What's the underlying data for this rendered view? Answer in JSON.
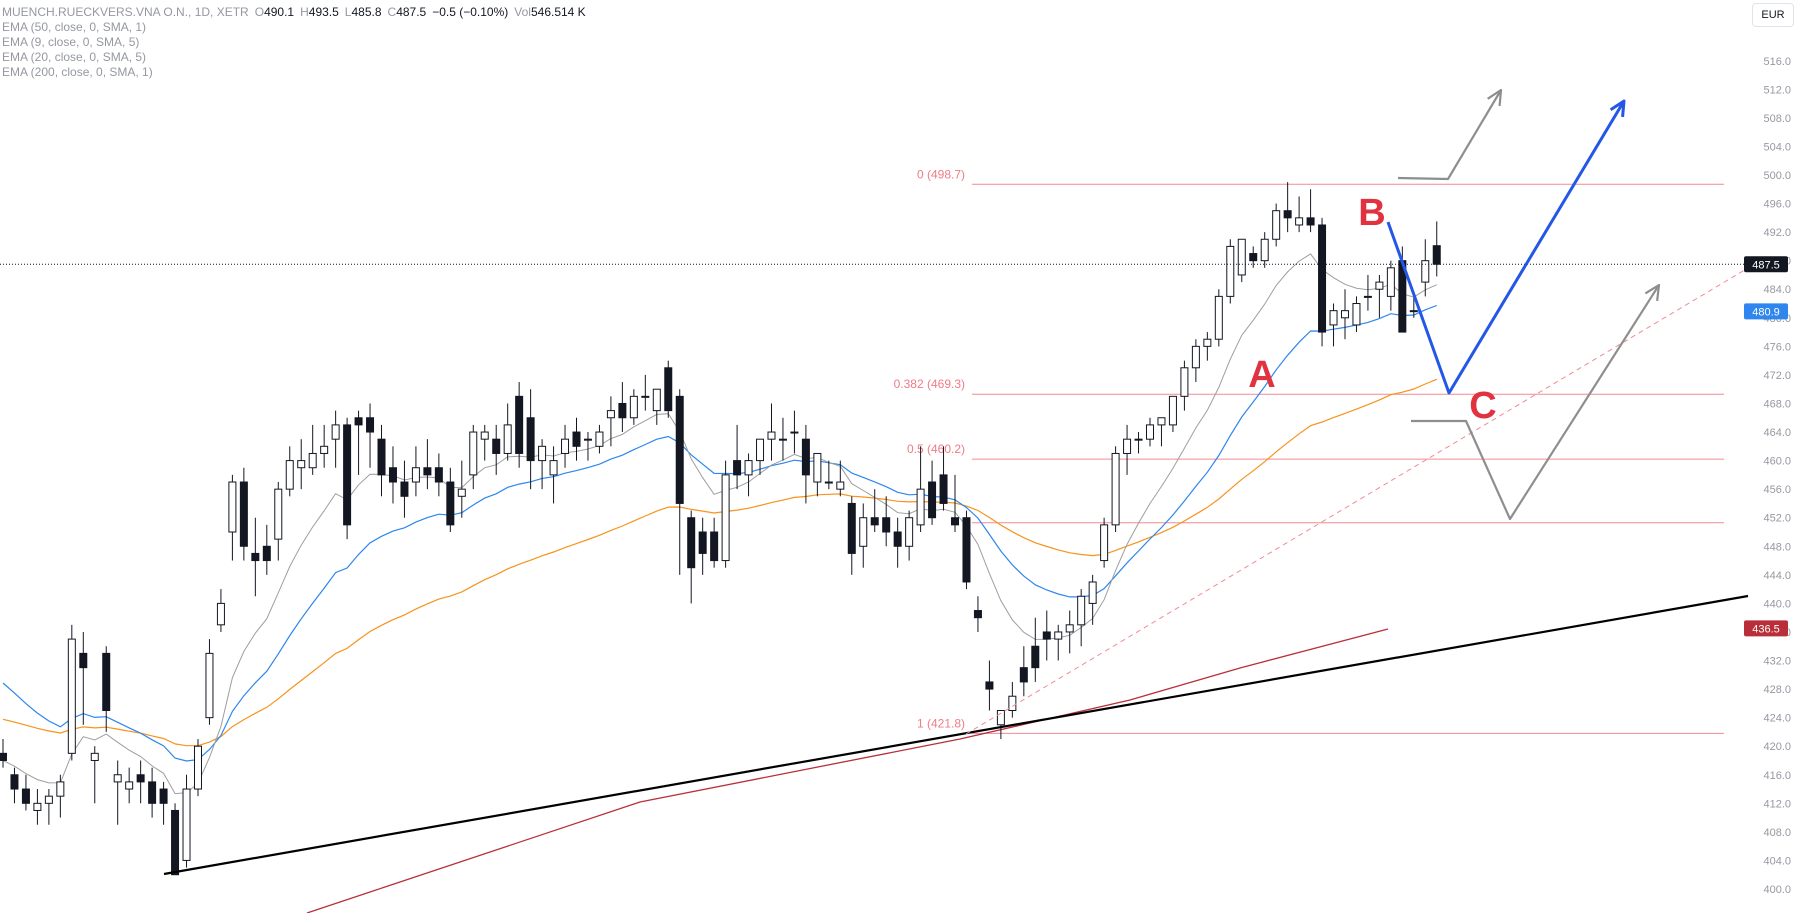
{
  "header": {
    "symbol": "MUENCH.RUECKVERS.VNA O.N., 1D, XETR",
    "open_label": "O",
    "open": "490.1",
    "high_label": "H",
    "high": "493.5",
    "low_label": "L",
    "low": "485.8",
    "close_label": "C",
    "close": "487.5",
    "change": "−0.5 (−0.10%)",
    "vol_label": "Vol",
    "volume": "546.514 K"
  },
  "indicators": [
    {
      "label": "EMA (50, close, 0, SMA, 1)",
      "color": "#f7931e"
    },
    {
      "label": "EMA (9, close, 0, SMA, 5)",
      "color": "#9e9e9e"
    },
    {
      "label": "EMA (20, close, 0, SMA, 5)",
      "color": "#2e86ee"
    },
    {
      "label": "EMA (200, close, 0, SMA, 1)",
      "color": "#b82f3a"
    }
  ],
  "currency": "EUR",
  "chart_data": {
    "type": "candlestick",
    "y_axis": {
      "min": 399,
      "max": 520,
      "tick_values": [
        400,
        404,
        408,
        412,
        416,
        420,
        424,
        428,
        432,
        436,
        440,
        444,
        448,
        452,
        456,
        460,
        464,
        468,
        472,
        476,
        480,
        484,
        488,
        492,
        496,
        500,
        504,
        508,
        512,
        516
      ],
      "tick_labels": [
        "400.0",
        "404.0",
        "408.0",
        "412.0",
        "416.0",
        "420.0",
        "424.0",
        "428.0",
        "432.0",
        "436.0",
        "440.0",
        "444.0",
        "448.0",
        "452.0",
        "456.0",
        "460.0",
        "464.0",
        "468.0",
        "472.0",
        "476.0",
        "480.0",
        "484.0",
        "488.0",
        "492.0",
        "496.0",
        "500.0",
        "504.0",
        "508.0",
        "512.0",
        "516.0"
      ]
    },
    "current_price": {
      "value": 487.5,
      "label": "487.5",
      "color": "#131722"
    },
    "price_tags": [
      {
        "value": 480.9,
        "label": "480.9",
        "color": "#2e86ee"
      },
      {
        "value": 436.5,
        "label": "436.5",
        "color": "#b82f3a"
      }
    ],
    "fibonacci": [
      {
        "level": 0,
        "price": 498.7,
        "label": "0 (498.7)"
      },
      {
        "level": 0.382,
        "price": 469.3,
        "label": "0.382 (469.3)"
      },
      {
        "level": 0.5,
        "price": 460.2,
        "label": "0.5 (460.2)"
      },
      {
        "level": 0.618,
        "price": 451.3,
        "label": ""
      },
      {
        "level": 1,
        "price": 421.8,
        "label": "1 (421.8)"
      }
    ],
    "wave_labels": [
      "A",
      "B",
      "C"
    ],
    "candles": [
      {
        "o": 419,
        "h": 421,
        "l": 417,
        "c": 418
      },
      {
        "o": 416,
        "h": 417,
        "l": 412,
        "c": 414
      },
      {
        "o": 414,
        "h": 416,
        "l": 411,
        "c": 412
      },
      {
        "o": 411,
        "h": 414,
        "l": 409,
        "c": 412
      },
      {
        "o": 412,
        "h": 414,
        "l": 409,
        "c": 413
      },
      {
        "o": 413,
        "h": 416,
        "l": 410,
        "c": 415
      },
      {
        "o": 419,
        "h": 437,
        "l": 418,
        "c": 435
      },
      {
        "o": 433,
        "h": 436,
        "l": 423,
        "c": 431
      },
      {
        "o": 418,
        "h": 420,
        "l": 412,
        "c": 419
      },
      {
        "o": 433,
        "h": 434,
        "l": 422,
        "c": 425
      },
      {
        "o": 415,
        "h": 418,
        "l": 409,
        "c": 416
      },
      {
        "o": 414,
        "h": 417,
        "l": 412,
        "c": 415
      },
      {
        "o": 416,
        "h": 418,
        "l": 412,
        "c": 415
      },
      {
        "o": 415,
        "h": 417,
        "l": 410,
        "c": 412
      },
      {
        "o": 414,
        "h": 415,
        "l": 409,
        "c": 412
      },
      {
        "o": 411,
        "h": 412,
        "l": 402,
        "c": 402
      },
      {
        "o": 404,
        "h": 416,
        "l": 403,
        "c": 414
      },
      {
        "o": 414,
        "h": 421,
        "l": 413,
        "c": 420
      },
      {
        "o": 424,
        "h": 435,
        "l": 423,
        "c": 433
      },
      {
        "o": 437,
        "h": 442,
        "l": 436,
        "c": 440
      },
      {
        "o": 450,
        "h": 458,
        "l": 446,
        "c": 457
      },
      {
        "o": 457,
        "h": 459,
        "l": 446,
        "c": 448
      },
      {
        "o": 447,
        "h": 452,
        "l": 441,
        "c": 446
      },
      {
        "o": 448,
        "h": 451,
        "l": 444,
        "c": 446
      },
      {
        "o": 449,
        "h": 457,
        "l": 446,
        "c": 456
      },
      {
        "o": 456,
        "h": 462,
        "l": 455,
        "c": 460
      },
      {
        "o": 459,
        "h": 463,
        "l": 456,
        "c": 460
      },
      {
        "o": 459,
        "h": 465,
        "l": 458,
        "c": 461
      },
      {
        "o": 461,
        "h": 465,
        "l": 459,
        "c": 462
      },
      {
        "o": 463,
        "h": 467,
        "l": 459,
        "c": 465
      },
      {
        "o": 465,
        "h": 466,
        "l": 449,
        "c": 451
      },
      {
        "o": 466,
        "h": 467,
        "l": 458,
        "c": 465
      },
      {
        "o": 466,
        "h": 468,
        "l": 459,
        "c": 464
      },
      {
        "o": 463,
        "h": 465,
        "l": 455,
        "c": 458
      },
      {
        "o": 459,
        "h": 462,
        "l": 454,
        "c": 457
      },
      {
        "o": 457,
        "h": 460,
        "l": 452,
        "c": 455
      },
      {
        "o": 457,
        "h": 462,
        "l": 455,
        "c": 459
      },
      {
        "o": 459,
        "h": 463,
        "l": 456,
        "c": 458
      },
      {
        "o": 459,
        "h": 461,
        "l": 455,
        "c": 457
      },
      {
        "o": 457,
        "h": 459,
        "l": 450,
        "c": 451
      },
      {
        "o": 455,
        "h": 460,
        "l": 452,
        "c": 456
      },
      {
        "o": 458,
        "h": 465,
        "l": 456,
        "c": 464
      },
      {
        "o": 463,
        "h": 465,
        "l": 460,
        "c": 464
      },
      {
        "o": 463,
        "h": 465,
        "l": 458,
        "c": 461
      },
      {
        "o": 461,
        "h": 468,
        "l": 460,
        "c": 465
      },
      {
        "o": 469,
        "h": 471,
        "l": 459,
        "c": 461
      },
      {
        "o": 466,
        "h": 470,
        "l": 456,
        "c": 460
      },
      {
        "o": 460,
        "h": 463,
        "l": 456,
        "c": 462
      },
      {
        "o": 458,
        "h": 462,
        "l": 454,
        "c": 460
      },
      {
        "o": 461,
        "h": 465,
        "l": 459,
        "c": 463
      },
      {
        "o": 464,
        "h": 466,
        "l": 460,
        "c": 462
      },
      {
        "o": 463,
        "h": 464,
        "l": 460,
        "c": 463
      },
      {
        "o": 462,
        "h": 465,
        "l": 461,
        "c": 464
      },
      {
        "o": 466,
        "h": 469,
        "l": 462,
        "c": 467
      },
      {
        "o": 468,
        "h": 471,
        "l": 464,
        "c": 466
      },
      {
        "o": 466,
        "h": 470,
        "l": 465,
        "c": 469
      },
      {
        "o": 469,
        "h": 472,
        "l": 467,
        "c": 469
      },
      {
        "o": 467,
        "h": 470,
        "l": 465,
        "c": 470
      },
      {
        "o": 473,
        "h": 474,
        "l": 466,
        "c": 467
      },
      {
        "o": 469,
        "h": 470,
        "l": 444,
        "c": 454
      },
      {
        "o": 452,
        "h": 453,
        "l": 440,
        "c": 445
      },
      {
        "o": 450,
        "h": 452,
        "l": 444,
        "c": 447
      },
      {
        "o": 450,
        "h": 452,
        "l": 445,
        "c": 446
      },
      {
        "o": 446,
        "h": 460,
        "l": 445,
        "c": 458
      },
      {
        "o": 460,
        "h": 465,
        "l": 456,
        "c": 458
      },
      {
        "o": 458,
        "h": 461,
        "l": 455,
        "c": 460
      },
      {
        "o": 460,
        "h": 463,
        "l": 458,
        "c": 463
      },
      {
        "o": 463,
        "h": 468,
        "l": 460,
        "c": 464
      },
      {
        "o": 463,
        "h": 466,
        "l": 460,
        "c": 463
      },
      {
        "o": 464,
        "h": 467,
        "l": 461,
        "c": 464
      },
      {
        "o": 463,
        "h": 465,
        "l": 454,
        "c": 458
      },
      {
        "o": 457,
        "h": 461,
        "l": 455,
        "c": 461
      },
      {
        "o": 457,
        "h": 460,
        "l": 456,
        "c": 457
      },
      {
        "o": 456,
        "h": 460,
        "l": 455,
        "c": 457
      },
      {
        "o": 454,
        "h": 455,
        "l": 444,
        "c": 447
      },
      {
        "o": 448,
        "h": 454,
        "l": 445,
        "c": 452
      },
      {
        "o": 452,
        "h": 456,
        "l": 450,
        "c": 451
      },
      {
        "o": 452,
        "h": 455,
        "l": 448,
        "c": 450
      },
      {
        "o": 450,
        "h": 452,
        "l": 445,
        "c": 448
      },
      {
        "o": 448,
        "h": 453,
        "l": 446,
        "c": 452
      },
      {
        "o": 451,
        "h": 462,
        "l": 450,
        "c": 456
      },
      {
        "o": 457,
        "h": 460,
        "l": 451,
        "c": 452
      },
      {
        "o": 458,
        "h": 462,
        "l": 453,
        "c": 454
      },
      {
        "o": 452,
        "h": 458,
        "l": 450,
        "c": 451
      },
      {
        "o": 452,
        "h": 453,
        "l": 442,
        "c": 443
      },
      {
        "o": 439,
        "h": 441,
        "l": 436,
        "c": 438
      },
      {
        "o": 429,
        "h": 432,
        "l": 425,
        "c": 428
      },
      {
        "o": 423,
        "h": 425,
        "l": 421,
        "c": 425
      },
      {
        "o": 425,
        "h": 429,
        "l": 424,
        "c": 427
      },
      {
        "o": 431,
        "h": 434,
        "l": 427,
        "c": 429
      },
      {
        "o": 434,
        "h": 438,
        "l": 429,
        "c": 431
      },
      {
        "o": 436,
        "h": 439,
        "l": 432,
        "c": 435
      },
      {
        "o": 435,
        "h": 437,
        "l": 432,
        "c": 436
      },
      {
        "o": 436,
        "h": 439,
        "l": 433,
        "c": 437
      },
      {
        "o": 437,
        "h": 442,
        "l": 434,
        "c": 441
      },
      {
        "o": 440,
        "h": 444,
        "l": 437,
        "c": 443
      },
      {
        "o": 446,
        "h": 452,
        "l": 445,
        "c": 451
      },
      {
        "o": 451,
        "h": 462,
        "l": 450,
        "c": 461
      },
      {
        "o": 461,
        "h": 465,
        "l": 458,
        "c": 463
      },
      {
        "o": 463,
        "h": 464,
        "l": 461,
        "c": 463
      },
      {
        "o": 463,
        "h": 466,
        "l": 462,
        "c": 465
      },
      {
        "o": 465,
        "h": 466,
        "l": 462,
        "c": 466
      },
      {
        "o": 465,
        "h": 469,
        "l": 464,
        "c": 469
      },
      {
        "o": 469,
        "h": 474,
        "l": 467,
        "c": 473
      },
      {
        "o": 473,
        "h": 477,
        "l": 471,
        "c": 476
      },
      {
        "o": 476,
        "h": 478,
        "l": 474,
        "c": 477
      },
      {
        "o": 477,
        "h": 484,
        "l": 476,
        "c": 483
      },
      {
        "o": 483,
        "h": 491,
        "l": 482,
        "c": 490
      },
      {
        "o": 486,
        "h": 491,
        "l": 485,
        "c": 491
      },
      {
        "o": 489,
        "h": 490,
        "l": 487,
        "c": 488
      },
      {
        "o": 488,
        "h": 492,
        "l": 487,
        "c": 491
      },
      {
        "o": 491,
        "h": 496,
        "l": 490,
        "c": 495
      },
      {
        "o": 495,
        "h": 499,
        "l": 492,
        "c": 494
      },
      {
        "o": 493,
        "h": 497,
        "l": 492,
        "c": 494
      },
      {
        "o": 494,
        "h": 498,
        "l": 492,
        "c": 493
      },
      {
        "o": 493,
        "h": 494,
        "l": 476,
        "c": 478
      },
      {
        "o": 479,
        "h": 482,
        "l": 476,
        "c": 481
      },
      {
        "o": 480,
        "h": 484,
        "l": 477,
        "c": 481
      },
      {
        "o": 479,
        "h": 483,
        "l": 478,
        "c": 482
      },
      {
        "o": 483,
        "h": 486,
        "l": 481,
        "c": 483
      },
      {
        "o": 484,
        "h": 486,
        "l": 480,
        "c": 485
      },
      {
        "o": 483,
        "h": 488,
        "l": 481,
        "c": 487
      },
      {
        "o": 488,
        "h": 490,
        "l": 478,
        "c": 478
      },
      {
        "o": 481,
        "h": 483,
        "l": 480,
        "c": 481
      },
      {
        "o": 485,
        "h": 491,
        "l": 483,
        "c": 488
      },
      {
        "o": 490.1,
        "h": 493.5,
        "l": 485.8,
        "c": 487.5
      }
    ]
  }
}
